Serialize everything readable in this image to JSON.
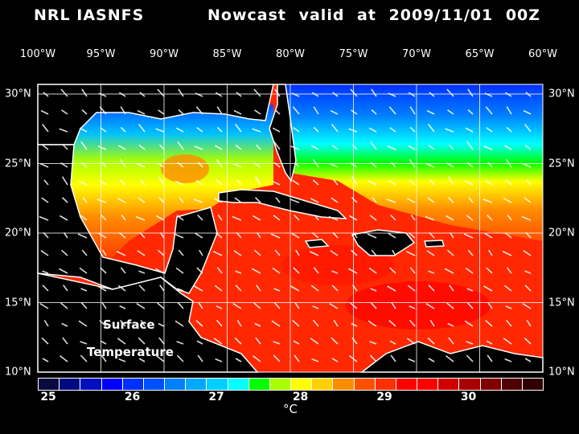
{
  "header": {
    "title_left": "NRL IASNFS",
    "title_right": "Nowcast   valid at 2009/11/01 00Z"
  },
  "map": {
    "lon_labels": [
      "100°W",
      "95°W",
      "90°W",
      "85°W",
      "80°W",
      "75°W",
      "70°W",
      "65°W",
      "60°W"
    ],
    "lat_labels": [
      "30°N",
      "25°N",
      "20°N",
      "15°N",
      "10°N"
    ],
    "annotation": [
      "Surface",
      "Temperature"
    ],
    "field": "sea surface temperature with surface current vectors"
  },
  "colorbar": {
    "tick_labels": [
      "25",
      "26",
      "27",
      "28",
      "29",
      "30"
    ],
    "unit": "°C",
    "min": 25,
    "max": 31,
    "step": 0.25,
    "colors": [
      "#0a0a40",
      "#000a80",
      "#0010c0",
      "#0000ff",
      "#0030ff",
      "#0050ff",
      "#0080ff",
      "#00a8ff",
      "#00d0ff",
      "#00ffff",
      "#00ff00",
      "#a8ff00",
      "#ffff00",
      "#ffd000",
      "#ff8c00",
      "#ff5000",
      "#ff3000",
      "#ff0000",
      "#ff0000",
      "#d00000",
      "#a80000",
      "#800000",
      "#500000",
      "#300000"
    ]
  }
}
